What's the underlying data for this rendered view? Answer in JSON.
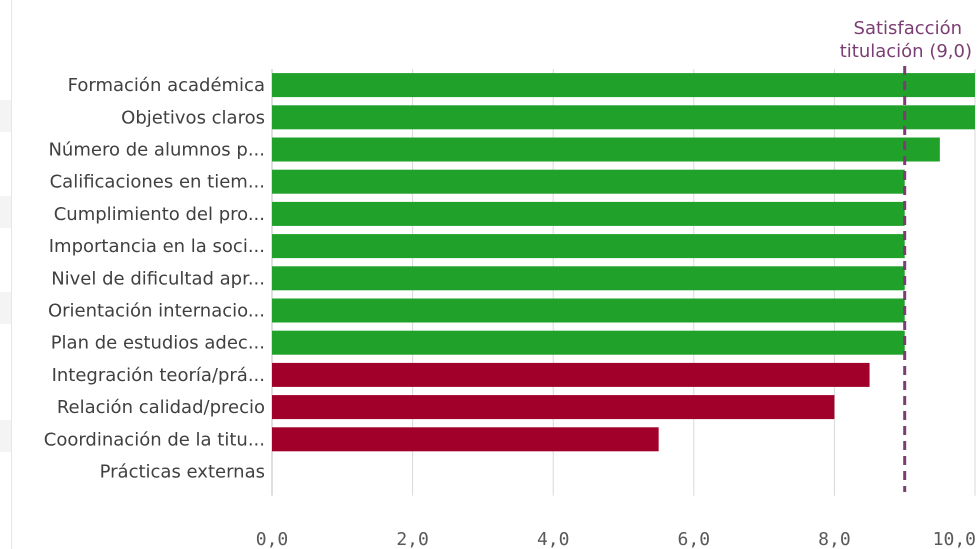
{
  "chart_data": {
    "type": "bar",
    "orientation": "horizontal",
    "categories": [
      "Formación académica",
      "Objetivos claros",
      "Número de alumnos p...",
      "Calificaciones en tiem...",
      "Cumplimiento del pro...",
      "Importancia en la soci...",
      "Nivel de dificultad apr...",
      "Orientación internacio...",
      "Plan de estudios adec...",
      "Integración teoría/prá...",
      "Relación calidad/precio",
      "Coordinación de la titu...",
      "Prácticas externas"
    ],
    "values": [
      10.0,
      10.0,
      9.5,
      9.0,
      9.0,
      9.0,
      9.0,
      9.0,
      9.0,
      8.5,
      8.0,
      5.5,
      null
    ],
    "xlim": [
      0,
      10
    ],
    "xticks": [
      "0,0",
      "2,0",
      "4,0",
      "6,0",
      "8,0",
      "10,0"
    ],
    "xtick_values": [
      0,
      2,
      4,
      6,
      8,
      10
    ],
    "grid": "vertical",
    "reference_line": {
      "value": 9.0,
      "label_line1": "Satisfacción",
      "label_line2": "titulación (9,0)",
      "color": "#7b3d73"
    },
    "colors": {
      "above_reference": "#1fa12a",
      "below_reference": "#a0002a",
      "grid": "#d9d9d9",
      "axis": "#bfbfbf"
    }
  }
}
